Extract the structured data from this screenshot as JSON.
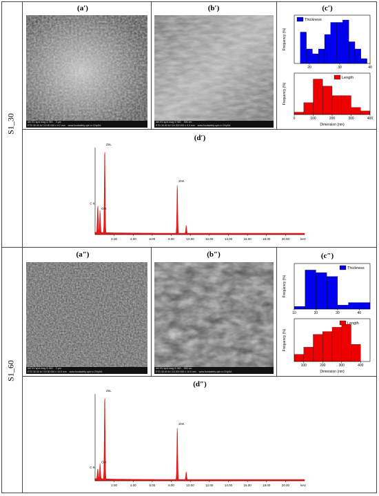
{
  "row_labels": [
    "S1_30",
    "S1_60"
  ],
  "panel_labels": {
    "a1": "(a′)",
    "b1": "(b′)",
    "c1": "(c′)",
    "d1": "(d′)",
    "a2": "(a″)",
    "b2": "(b″)",
    "c2": "(c″)",
    "d2": "(d″)"
  },
  "sem": {
    "a1": {
      "line1": "det HV spot mag ⊡ WD",
      "line2": "ETD 30.00 kV 3.5 50 000 x 9.2 mm",
      "scale": "3 µm",
      "site": "www.foodsafety.upb.ro CNpSA"
    },
    "b1": {
      "line1": "det HV spot mag ⊡ WD",
      "line2": "ETD 30.00 kV 3.5 200 000 x 9.3 mm",
      "scale": "500 nm",
      "site": "www.foodsafety.upb.ro CNpSA"
    },
    "a2": {
      "line1": "det HV spot mag ⊡ WD",
      "line2": "ETD 30.00 kV 3.5 50 000 x 10.5 mm",
      "scale": "2 µm",
      "site": "www.foodsafety.upb.ro CNpSA"
    },
    "b2": {
      "line1": "det HV spot mag ⊡ WD",
      "line2": "ETD 30.00 kV 3.5 200 000 x 10.5 mm",
      "scale": "500 nm",
      "site": "www.foodsafety.upb.ro CNpSA"
    }
  },
  "colors": {
    "thickness": "#0000ee",
    "length": "#ee0000",
    "eds": "#e21b1b"
  },
  "chart_data": [
    {
      "id": "c1_thickness",
      "type": "bar",
      "legend": "Thickness",
      "ylabel": "Frequency (%)",
      "x_ticks": [
        "20",
        "30",
        "40"
      ],
      "x_range": [
        15,
        40
      ],
      "bins": [
        17,
        19,
        21,
        23,
        25,
        27,
        29,
        31,
        33,
        35,
        37
      ],
      "values": [
        13,
        6,
        4,
        6,
        12,
        17,
        17,
        18,
        9,
        6,
        2
      ],
      "ylim": [
        0,
        20
      ]
    },
    {
      "id": "c1_length",
      "type": "bar",
      "legend": "Length",
      "ylabel": "Frequency (%)",
      "xlabel": "Dimension (nm)",
      "x_ticks": [
        "0",
        "100",
        "200",
        "300",
        "400"
      ],
      "x_range": [
        0,
        400
      ],
      "bins": [
        0,
        50,
        100,
        150,
        200,
        250,
        300,
        350
      ],
      "values": [
        2,
        10,
        30,
        24,
        16,
        16,
        6,
        3
      ],
      "ylim": [
        0,
        35
      ]
    },
    {
      "id": "c2_thickness",
      "type": "bar",
      "legend": "Thickness",
      "ylabel": "Frequency (%)",
      "x_ticks": [
        "10",
        "20",
        "30",
        "40"
      ],
      "x_range": [
        10,
        45
      ],
      "bins": [
        10,
        15,
        20,
        25,
        30,
        35,
        40
      ],
      "values": [
        2,
        30,
        28,
        25,
        3,
        5,
        5
      ],
      "ylim": [
        0,
        35
      ]
    },
    {
      "id": "c2_length",
      "type": "bar",
      "legend": "Length",
      "ylabel": "Frequency (%)",
      "xlabel": "Dimension (nm)",
      "x_ticks": [
        "100",
        "200",
        "300",
        "400"
      ],
      "x_range": [
        50,
        450
      ],
      "bins": [
        50,
        100,
        150,
        200,
        250,
        300,
        350
      ],
      "values": [
        5,
        10,
        19,
        21,
        24,
        26,
        12
      ],
      "ylim": [
        0,
        30
      ]
    },
    {
      "id": "d1_eds",
      "type": "line",
      "x_unit": "keV",
      "x_ticks": [
        "2.00",
        "4.00",
        "6.00",
        "8.00",
        "10.00",
        "12.00",
        "14.00",
        "16.00",
        "18.00",
        "20.00"
      ],
      "x_range": [
        0,
        22
      ],
      "peaks": [
        {
          "label": "C K",
          "x": 0.28,
          "y": 0.32
        },
        {
          "label": "O K",
          "x": 0.52,
          "y": 0.26
        },
        {
          "label": "ZnL",
          "x": 1.01,
          "y": 1.0
        },
        {
          "label": "ZnK",
          "x": 8.63,
          "y": 0.58
        },
        {
          "x": 9.57,
          "y": 0.09
        }
      ]
    },
    {
      "id": "d2_eds",
      "type": "line",
      "x_unit": "keV",
      "x_ticks": [
        "2.00",
        "4.00",
        "6.00",
        "8.00",
        "10.00",
        "12.00",
        "14.00",
        "16.00",
        "18.00",
        "20.00"
      ],
      "x_range": [
        0,
        22
      ],
      "peaks": [
        {
          "label": "C K",
          "x": 0.28,
          "y": 0.12
        },
        {
          "label": "O K",
          "x": 0.52,
          "y": 0.18
        },
        {
          "label": "ZnL",
          "x": 1.01,
          "y": 1.0
        },
        {
          "label": "ZnK",
          "x": 8.63,
          "y": 0.62
        },
        {
          "x": 9.57,
          "y": 0.09
        }
      ]
    }
  ]
}
